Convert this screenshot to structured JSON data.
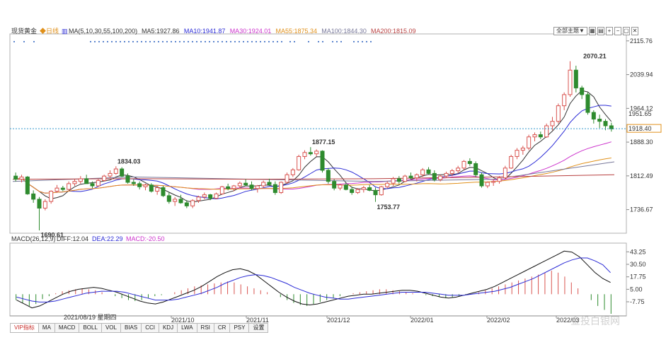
{
  "header": {
    "symbol": "现货黄金",
    "period": "日线",
    "ma_params": "MA(5,10,30,55,100,200)",
    "ma_values": [
      {
        "label": "MA5:1927.86",
        "color": "#333333"
      },
      {
        "label": "MA10:1941.87",
        "color": "#2b2bd6"
      },
      {
        "label": "MA30:1924.01",
        "color": "#cc33cc"
      },
      {
        "label": "MA55:1875.34",
        "color": "#e0901a"
      },
      {
        "label": "MA100:1844.30",
        "color": "#777799"
      },
      {
        "label": "MA200:1815.09",
        "color": "#b84040"
      }
    ]
  },
  "toolbar": {
    "theme_label": "全部主题▼",
    "icons": [
      "grid-icon",
      "grid2-icon",
      "zoom-in-icon",
      "zoom-out-icon",
      "window-icon",
      "close-icon"
    ]
  },
  "macd_header": {
    "params": "MACD(26,12,9)",
    "diff": "DIFF:12.04",
    "dea": "DEA:22.29",
    "macd": "MACD:-20.50"
  },
  "cursor_date": "2021/08/19 星期四",
  "tabs": [
    "VIP指标",
    "MA",
    "MACD",
    "BOLL",
    "VOL",
    "BIAS",
    "CCI",
    "KDJ",
    "LWA",
    "RSI",
    "CR",
    "PSY",
    "设置"
  ],
  "watermark": "金投白银网",
  "colors": {
    "up": "#d9534f",
    "down": "#2e8b2e",
    "price_line": "#3399cc",
    "diff": "#111111",
    "dea": "#2b2bd6"
  },
  "chart_data": {
    "type": "candlestick",
    "price_axis": {
      "ticks": [
        "2115.76",
        "2039.94",
        "1964.12",
        "1888.30",
        "1812.49",
        "1736.67"
      ],
      "range": [
        1690,
        2125
      ]
    },
    "current_price": {
      "value": 1918.4,
      "label": "1918.40"
    },
    "level_label": {
      "value": 1951.65,
      "label": "1951.65"
    },
    "annotations": [
      {
        "label": "1690.61",
        "value": 1690.61,
        "date": "2021/08/09",
        "kind": "low"
      },
      {
        "label": "1834.03",
        "value": 1834.03,
        "date": "2021/09/03",
        "kind": "high"
      },
      {
        "label": "1877.15",
        "value": 1877.15,
        "date": "2021/11/16",
        "kind": "high"
      },
      {
        "label": "1753.77",
        "value": 1753.77,
        "date": "2021/12/15",
        "kind": "low"
      },
      {
        "label": "2070.21",
        "value": 2070.21,
        "date": "2022/03/08",
        "kind": "high"
      }
    ],
    "x_axis_labels": [
      "2021/10",
      "2021/11",
      "2021/12",
      "2022/01",
      "2022/02",
      "2022/03"
    ],
    "ohlc_approx": [
      [
        1812,
        1820,
        1800,
        1805
      ],
      [
        1805,
        1815,
        1798,
        1810
      ],
      [
        1810,
        1812,
        1770,
        1772
      ],
      [
        1772,
        1780,
        1752,
        1760
      ],
      [
        1760,
        1765,
        1690,
        1740
      ],
      [
        1740,
        1760,
        1735,
        1755
      ],
      [
        1755,
        1780,
        1750,
        1778
      ],
      [
        1778,
        1792,
        1775,
        1785
      ],
      [
        1785,
        1790,
        1778,
        1782
      ],
      [
        1782,
        1800,
        1780,
        1795
      ],
      [
        1795,
        1805,
        1790,
        1800
      ],
      [
        1800,
        1812,
        1795,
        1806
      ],
      [
        1806,
        1815,
        1800,
        1795
      ],
      [
        1795,
        1800,
        1785,
        1790
      ],
      [
        1790,
        1805,
        1788,
        1802
      ],
      [
        1802,
        1815,
        1800,
        1812
      ],
      [
        1812,
        1825,
        1808,
        1818
      ],
      [
        1818,
        1834,
        1815,
        1828
      ],
      [
        1828,
        1832,
        1810,
        1812
      ],
      [
        1812,
        1818,
        1795,
        1798
      ],
      [
        1798,
        1805,
        1790,
        1795
      ],
      [
        1795,
        1800,
        1782,
        1788
      ],
      [
        1788,
        1795,
        1780,
        1792
      ],
      [
        1792,
        1796,
        1775,
        1778
      ],
      [
        1778,
        1790,
        1770,
        1786
      ],
      [
        1786,
        1790,
        1765,
        1768
      ],
      [
        1768,
        1775,
        1750,
        1755
      ],
      [
        1755,
        1765,
        1745,
        1760
      ],
      [
        1760,
        1770,
        1750,
        1752
      ],
      [
        1752,
        1758,
        1740,
        1745
      ],
      [
        1745,
        1760,
        1740,
        1757
      ],
      [
        1757,
        1768,
        1752,
        1765
      ],
      [
        1765,
        1775,
        1760,
        1770
      ],
      [
        1770,
        1772,
        1758,
        1762
      ],
      [
        1762,
        1775,
        1760,
        1772
      ],
      [
        1772,
        1790,
        1770,
        1788
      ],
      [
        1788,
        1795,
        1780,
        1784
      ],
      [
        1784,
        1792,
        1778,
        1790
      ],
      [
        1790,
        1800,
        1785,
        1796
      ],
      [
        1796,
        1805,
        1790,
        1792
      ],
      [
        1792,
        1800,
        1780,
        1784
      ],
      [
        1784,
        1792,
        1775,
        1790
      ],
      [
        1790,
        1802,
        1786,
        1798
      ],
      [
        1798,
        1806,
        1790,
        1793
      ],
      [
        1793,
        1800,
        1770,
        1775
      ],
      [
        1775,
        1800,
        1772,
        1798
      ],
      [
        1798,
        1820,
        1795,
        1815
      ],
      [
        1815,
        1830,
        1810,
        1826
      ],
      [
        1826,
        1860,
        1824,
        1856
      ],
      [
        1856,
        1870,
        1850,
        1865
      ],
      [
        1865,
        1877,
        1858,
        1862
      ],
      [
        1862,
        1872,
        1856,
        1868
      ],
      [
        1868,
        1870,
        1820,
        1825
      ],
      [
        1825,
        1830,
        1795,
        1800
      ],
      [
        1800,
        1805,
        1780,
        1785
      ],
      [
        1785,
        1795,
        1780,
        1792
      ],
      [
        1792,
        1796,
        1780,
        1782
      ],
      [
        1782,
        1788,
        1770,
        1775
      ],
      [
        1775,
        1785,
        1772,
        1782
      ],
      [
        1782,
        1790,
        1775,
        1786
      ],
      [
        1786,
        1792,
        1778,
        1780
      ],
      [
        1780,
        1786,
        1754,
        1770
      ],
      [
        1770,
        1790,
        1768,
        1788
      ],
      [
        1788,
        1800,
        1785,
        1796
      ],
      [
        1796,
        1810,
        1790,
        1806
      ],
      [
        1806,
        1812,
        1795,
        1800
      ],
      [
        1800,
        1815,
        1798,
        1812
      ],
      [
        1812,
        1820,
        1805,
        1808
      ],
      [
        1808,
        1818,
        1800,
        1815
      ],
      [
        1815,
        1830,
        1810,
        1826
      ],
      [
        1826,
        1832,
        1815,
        1818
      ],
      [
        1818,
        1825,
        1800,
        1804
      ],
      [
        1804,
        1815,
        1800,
        1812
      ],
      [
        1812,
        1822,
        1808,
        1818
      ],
      [
        1818,
        1828,
        1812,
        1824
      ],
      [
        1824,
        1835,
        1818,
        1830
      ],
      [
        1830,
        1848,
        1826,
        1845
      ],
      [
        1845,
        1852,
        1835,
        1840
      ],
      [
        1840,
        1845,
        1810,
        1815
      ],
      [
        1815,
        1820,
        1786,
        1790
      ],
      [
        1790,
        1800,
        1785,
        1798
      ],
      [
        1798,
        1805,
        1790,
        1800
      ],
      [
        1800,
        1812,
        1795,
        1808
      ],
      [
        1808,
        1835,
        1805,
        1830
      ],
      [
        1830,
        1860,
        1828,
        1856
      ],
      [
        1856,
        1875,
        1850,
        1870
      ],
      [
        1870,
        1880,
        1860,
        1875
      ],
      [
        1875,
        1905,
        1870,
        1900
      ],
      [
        1900,
        1910,
        1890,
        1905
      ],
      [
        1905,
        1912,
        1895,
        1900
      ],
      [
        1900,
        1930,
        1898,
        1925
      ],
      [
        1925,
        1945,
        1915,
        1935
      ],
      [
        1935,
        1975,
        1930,
        1970
      ],
      [
        1970,
        2000,
        1960,
        1995
      ],
      [
        1995,
        2070,
        1990,
        2050
      ],
      [
        2050,
        2060,
        2000,
        2010
      ],
      [
        2010,
        2015,
        1985,
        1995
      ],
      [
        1995,
        2000,
        1950,
        1955
      ],
      [
        1955,
        1960,
        1930,
        1940
      ],
      [
        1940,
        1950,
        1920,
        1935
      ],
      [
        1935,
        1940,
        1915,
        1925
      ],
      [
        1925,
        1932,
        1912,
        1918
      ]
    ],
    "macd_axis": {
      "ticks": [
        "43.25",
        "30.50",
        "17.75",
        "5.00",
        "-7.75"
      ],
      "range": [
        -20,
        50
      ]
    },
    "macd_hist_approx": [
      -6,
      -9,
      -12,
      -10,
      -5,
      -2,
      1,
      3,
      4,
      5,
      6,
      5,
      4,
      2,
      0,
      -2,
      -4,
      -6,
      -7,
      -6,
      -4,
      -2,
      -1,
      0,
      2,
      4,
      6,
      8,
      9,
      10,
      11,
      12,
      13,
      12,
      10,
      8,
      6,
      4,
      2,
      0,
      -3,
      -6,
      -9,
      -11,
      -12,
      -10,
      -8,
      -6,
      -4,
      -2,
      0,
      1,
      2,
      3,
      4,
      5,
      5,
      4,
      3,
      2,
      1,
      0,
      -1,
      -2,
      -3,
      -4,
      -3,
      -2,
      -1,
      0,
      2,
      4,
      6,
      8,
      10,
      12,
      14,
      16,
      18,
      20,
      22,
      24,
      22,
      18,
      12,
      6,
      0,
      -6,
      -12,
      -16,
      -20
    ],
    "diff_approx": [
      -6,
      -10,
      -14,
      -12,
      -8,
      -4,
      0,
      3,
      5,
      6,
      7,
      6,
      4,
      2,
      -1,
      -4,
      -7,
      -9,
      -10,
      -8,
      -5,
      -2,
      1,
      4,
      8,
      13,
      18,
      22,
      25,
      26,
      24,
      20,
      14,
      8,
      2,
      -3,
      -7,
      -10,
      -11,
      -10,
      -8,
      -6,
      -4,
      -2,
      -1,
      0,
      0,
      1,
      2,
      3,
      4,
      4,
      3,
      1,
      -1,
      -3,
      -4,
      -3,
      -1,
      1,
      3,
      5,
      8,
      12,
      16,
      20,
      24,
      28,
      32,
      36,
      40,
      44,
      43,
      38,
      30,
      22,
      16,
      12
    ],
    "dea_approx": [
      -3,
      -5,
      -7,
      -8,
      -8,
      -7,
      -5,
      -3,
      -1,
      1,
      2,
      3,
      3,
      3,
      2,
      0,
      -2,
      -4,
      -6,
      -6,
      -6,
      -5,
      -3,
      -1,
      1,
      4,
      7,
      11,
      14,
      17,
      19,
      20,
      19,
      17,
      14,
      11,
      7,
      4,
      1,
      -1,
      -3,
      -4,
      -5,
      -5,
      -4,
      -3,
      -2,
      -1,
      0,
      1,
      2,
      2,
      2,
      2,
      1,
      0,
      -1,
      -1,
      -1,
      0,
      1,
      2,
      3,
      5,
      7,
      10,
      13,
      16,
      20,
      24,
      28,
      32,
      35,
      37,
      37,
      34,
      30,
      22
    ]
  }
}
